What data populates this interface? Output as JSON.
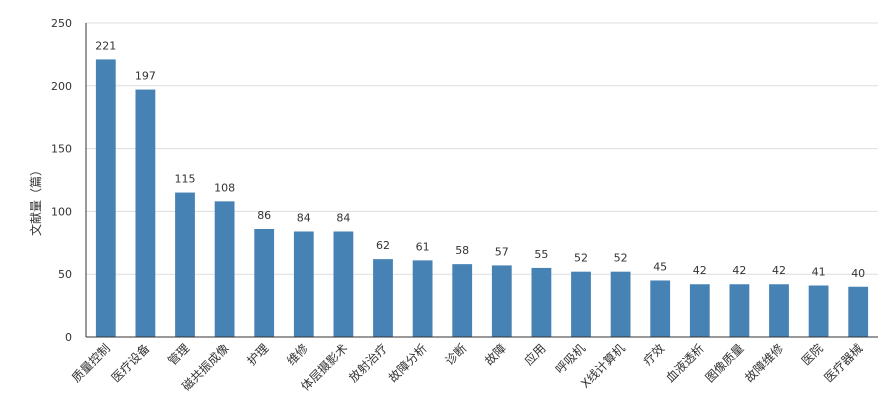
{
  "chart_data": {
    "type": "bar",
    "title": "",
    "xlabel": "",
    "ylabel": "文献量（篇）",
    "ylim": [
      0,
      250
    ],
    "yticks": [
      0,
      50,
      100,
      150,
      200,
      250
    ],
    "grid": true,
    "categories": [
      "质量控制",
      "医疗设备",
      "管理",
      "磁共振成像",
      "护理",
      "维修",
      "体层摄影术",
      "放射治疗",
      "故障分析",
      "诊断",
      "故障",
      "应用",
      "呼吸机",
      "X线计算机",
      "疗效",
      "血液透析",
      "图像质量",
      "故障维修",
      "医院",
      "医疗器械"
    ],
    "values": [
      221,
      197,
      115,
      108,
      86,
      84,
      84,
      62,
      61,
      58,
      57,
      55,
      52,
      52,
      45,
      42,
      42,
      42,
      41,
      40
    ],
    "colors": {
      "bar": "#4682b4",
      "grid": "#dddddd",
      "axis": "#333333"
    }
  }
}
